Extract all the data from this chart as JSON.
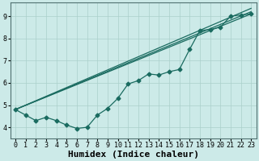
{
  "xlabel": "Humidex (Indice chaleur)",
  "ylabel": "",
  "bg_color": "#cceae8",
  "line_color": "#1a6b60",
  "grid_color": "#aacfcb",
  "xlim": [
    -0.5,
    23.5
  ],
  "ylim": [
    3.5,
    9.6
  ],
  "xticks": [
    0,
    1,
    2,
    3,
    4,
    5,
    6,
    7,
    8,
    9,
    10,
    11,
    12,
    13,
    14,
    15,
    16,
    17,
    18,
    19,
    20,
    21,
    22,
    23
  ],
  "yticks": [
    4,
    5,
    6,
    7,
    8,
    9
  ],
  "marker_series": [
    4.8,
    4.55,
    4.3,
    4.45,
    4.3,
    4.1,
    3.95,
    4.0,
    4.55,
    4.85,
    5.3,
    5.95,
    6.1,
    6.4,
    6.35,
    6.5,
    6.6,
    7.5,
    8.35,
    8.4,
    8.5,
    9.0,
    9.05,
    9.1
  ],
  "straight_lines": [
    {
      "x0": 0,
      "y0": 4.8,
      "x1": 23,
      "y1": 9.1
    },
    {
      "x0": 0,
      "y0": 4.8,
      "x1": 23,
      "y1": 9.2
    },
    {
      "x0": 0,
      "y0": 4.8,
      "x1": 23,
      "y1": 9.35
    }
  ],
  "marker": "D",
  "marker_size": 2.5,
  "line_width": 0.9,
  "font_family": "monospace",
  "tick_fontsize": 6,
  "xlabel_fontsize": 8
}
